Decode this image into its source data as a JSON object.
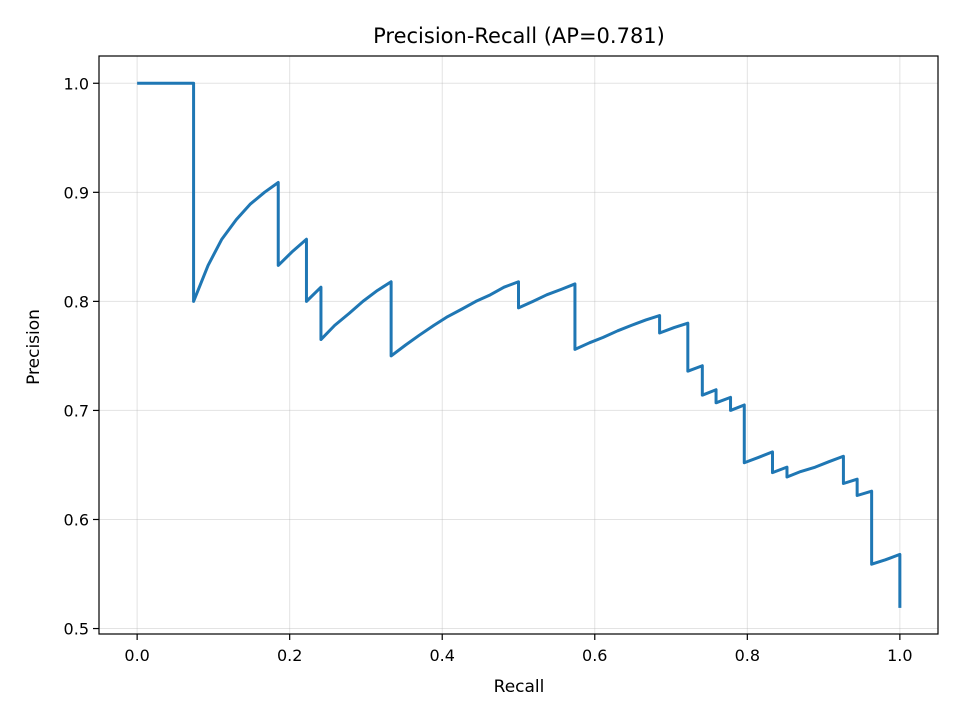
{
  "chart_data": {
    "type": "line",
    "title": "Precision-Recall (AP=0.781)",
    "xlabel": "Recall",
    "ylabel": "Precision",
    "xlim": [
      -0.05,
      1.05
    ],
    "ylim": [
      0.495,
      1.025
    ],
    "xticks": [
      "0.0",
      "0.2",
      "0.4",
      "0.6",
      "0.8",
      "1.0"
    ],
    "yticks": [
      "0.5",
      "0.6",
      "0.7",
      "0.8",
      "0.9",
      "1.0"
    ],
    "grid": true,
    "legend": "none",
    "series": [
      {
        "color": "#1f77b4",
        "x": [
          0.0,
          0.074,
          0.074,
          0.093,
          0.111,
          0.13,
          0.148,
          0.167,
          0.185,
          0.185,
          0.204,
          0.222,
          0.222,
          0.241,
          0.241,
          0.259,
          0.278,
          0.296,
          0.315,
          0.333,
          0.333,
          0.352,
          0.37,
          0.389,
          0.407,
          0.426,
          0.444,
          0.463,
          0.481,
          0.5,
          0.5,
          0.519,
          0.537,
          0.556,
          0.574,
          0.574,
          0.593,
          0.611,
          0.63,
          0.648,
          0.667,
          0.685,
          0.685,
          0.704,
          0.722,
          0.722,
          0.741,
          0.741,
          0.759,
          0.759,
          0.778,
          0.778,
          0.796,
          0.796,
          0.815,
          0.833,
          0.833,
          0.852,
          0.852,
          0.87,
          0.889,
          0.907,
          0.926,
          0.926,
          0.944,
          0.944,
          0.963,
          0.963,
          0.981,
          1.0,
          1.0
        ],
        "y": [
          1.0,
          1.0,
          0.8,
          0.833,
          0.857,
          0.875,
          0.889,
          0.9,
          0.909,
          0.833,
          0.846,
          0.857,
          0.8,
          0.813,
          0.765,
          0.778,
          0.789,
          0.8,
          0.81,
          0.818,
          0.75,
          0.76,
          0.769,
          0.778,
          0.786,
          0.793,
          0.8,
          0.806,
          0.813,
          0.818,
          0.794,
          0.8,
          0.806,
          0.811,
          0.816,
          0.756,
          0.762,
          0.767,
          0.773,
          0.778,
          0.783,
          0.787,
          0.771,
          0.776,
          0.78,
          0.736,
          0.741,
          0.714,
          0.719,
          0.707,
          0.712,
          0.7,
          0.705,
          0.652,
          0.657,
          0.662,
          0.643,
          0.648,
          0.639,
          0.644,
          0.648,
          0.653,
          0.658,
          0.633,
          0.637,
          0.622,
          0.626,
          0.559,
          0.563,
          0.568,
          0.519
        ]
      }
    ]
  }
}
